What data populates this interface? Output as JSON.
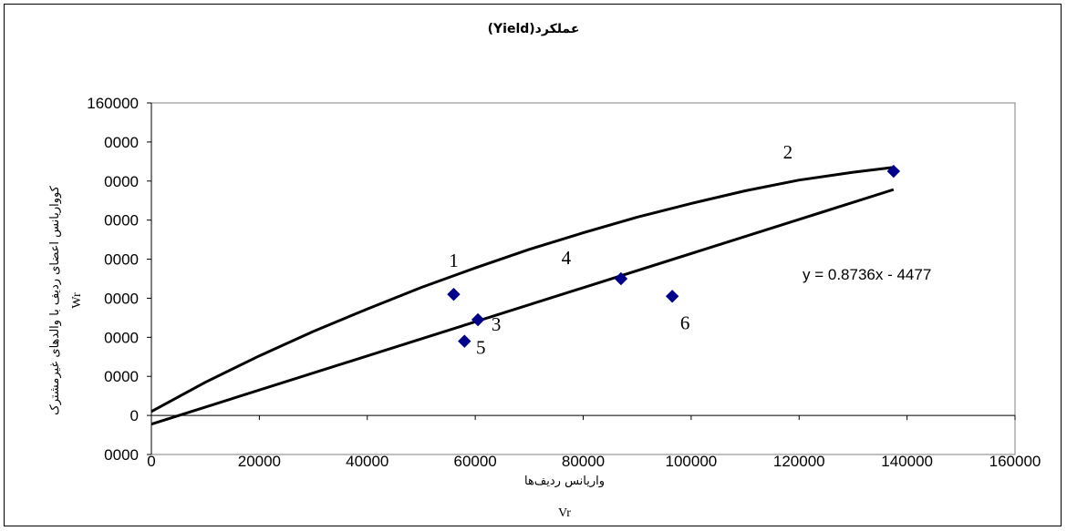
{
  "chart_data": {
    "type": "scatter",
    "title": "عملکرد(Yield)",
    "xlabel": "واریانس ردیف‌ها",
    "xlabel_symbol": "Vr",
    "ylabel": "کوواریانس اعضای ردیف با والدهای غیرمشترک",
    "ylabel_symbol": "Wr",
    "xlim": [
      0,
      160000
    ],
    "ylim": [
      -20000,
      160000
    ],
    "x_ticks": [
      "0",
      "20000",
      "40000",
      "60000",
      "80000",
      "100000",
      "120000",
      "140000",
      "160000"
    ],
    "y_ticks": [
      "160000",
      "0000",
      "0000",
      "0000",
      "0000",
      "0000",
      "0000",
      "0000",
      "0",
      "0000"
    ],
    "grid": false,
    "legend": "none",
    "marker_color": "#00008B",
    "points": [
      {
        "label": "1",
        "x": 56000,
        "y": 62000
      },
      {
        "label": "2",
        "x": 137500,
        "y": 125000
      },
      {
        "label": "3",
        "x": 60500,
        "y": 49000
      },
      {
        "label": "4",
        "x": 87000,
        "y": 70000
      },
      {
        "label": "5",
        "x": 58000,
        "y": 38000
      },
      {
        "label": "6",
        "x": 96500,
        "y": 61000
      }
    ],
    "regression_line": {
      "x": [
        0,
        137500
      ],
      "y": [
        -4477,
        115643
      ]
    },
    "parabola": {
      "x": [
        0,
        10000,
        20000,
        30000,
        40000,
        50000,
        60000,
        70000,
        80000,
        90000,
        100000,
        110000,
        120000,
        130000,
        137500
      ],
      "y": [
        2000,
        17000,
        30500,
        43000,
        54500,
        65500,
        75500,
        85000,
        93500,
        101500,
        108500,
        115000,
        120500,
        124500,
        127000
      ]
    },
    "equation": "y = 0.8736x - 4477"
  }
}
